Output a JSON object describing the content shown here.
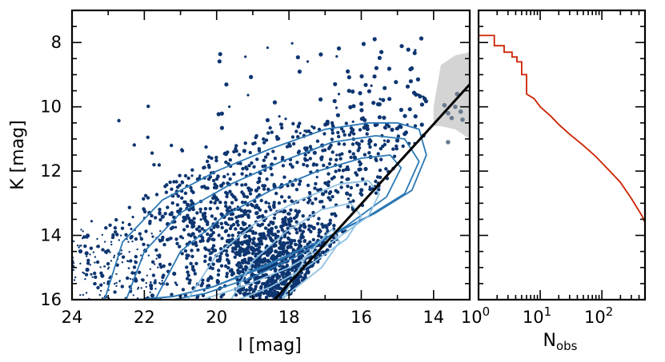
{
  "chart_data": [
    {
      "type": "scatter",
      "title": "",
      "xlabel": "I [mag]",
      "ylabel": "K [mag]",
      "xlim": [
        24.0,
        13.0
      ],
      "ylim": [
        16.0,
        7.0
      ],
      "x_inverted": true,
      "y_inverted": true,
      "xticks": [
        "24",
        "22",
        "20",
        "18",
        "16",
        "14"
      ],
      "yticks": [
        "8",
        "10",
        "12",
        "14",
        "16"
      ],
      "colors": {
        "points": "#0d3570",
        "contours_dark": "#2b78b5",
        "contours_light": "#8ec1e2",
        "line": "#000000",
        "band": "#d4d4d4"
      },
      "line": {
        "x": [
          18.4,
          13.0
        ],
        "y": [
          16.0,
          9.3
        ]
      },
      "band": {
        "x": [
          14.0,
          13.8,
          13.4,
          13.0,
          13.0,
          13.4,
          13.8,
          14.0
        ],
        "y": [
          10.0,
          8.7,
          8.4,
          8.3,
          11.0,
          10.7,
          10.6,
          10.6
        ]
      },
      "contours": [
        {
          "level": 1,
          "x": [
            23.1,
            22.6,
            21.5,
            20.0,
            18.5,
            17.0,
            15.8,
            15.0,
            14.4,
            14.2,
            14.6,
            15.6,
            17.0,
            18.6,
            20.1,
            21.2,
            22.2,
            22.9,
            23.1
          ],
          "y": [
            16.0,
            14.2,
            12.9,
            12.0,
            11.3,
            10.7,
            10.5,
            10.5,
            10.7,
            11.5,
            12.6,
            13.3,
            14.1,
            14.9,
            15.6,
            15.9,
            16.0,
            16.0,
            16.0
          ]
        },
        {
          "level": 2,
          "x": [
            22.5,
            22.0,
            21.0,
            19.6,
            18.2,
            16.8,
            15.6,
            14.8,
            14.4,
            14.8,
            15.8,
            17.2,
            18.7,
            20.1,
            21.2,
            22.1,
            22.5
          ],
          "y": [
            16.0,
            14.5,
            13.3,
            12.4,
            11.7,
            11.1,
            10.9,
            11.0,
            11.7,
            12.7,
            13.4,
            14.2,
            15.0,
            15.6,
            15.9,
            16.0,
            16.0
          ]
        },
        {
          "level": 3,
          "x": [
            21.7,
            21.0,
            19.8,
            18.5,
            17.2,
            16.0,
            15.2,
            14.9,
            15.3,
            16.4,
            17.7,
            19.0,
            20.3,
            21.2,
            21.7
          ],
          "y": [
            16.0,
            14.5,
            13.4,
            12.6,
            12.0,
            11.6,
            11.5,
            11.9,
            12.8,
            13.7,
            14.6,
            15.3,
            15.8,
            16.0,
            16.0
          ]
        },
        {
          "level": 4,
          "x": [
            20.8,
            20.0,
            18.9,
            17.7,
            16.6,
            15.8,
            15.5,
            15.8,
            16.8,
            18.0,
            19.3,
            20.4,
            20.8
          ],
          "y": [
            16.0,
            14.6,
            13.6,
            12.9,
            12.4,
            12.3,
            12.7,
            13.4,
            14.2,
            15.0,
            15.6,
            16.0,
            16.0
          ]
        },
        {
          "level": 5,
          "x": [
            19.6,
            19.0,
            18.1,
            17.1,
            16.3,
            16.0,
            16.4,
            17.4,
            18.5,
            19.4,
            19.6
          ],
          "y": [
            16.0,
            14.8,
            13.9,
            13.2,
            13.0,
            13.4,
            14.1,
            14.9,
            15.6,
            16.0,
            16.0
          ]
        },
        {
          "level": 6,
          "x": [
            18.2,
            17.5,
            16.8,
            16.6,
            17.1,
            18.0,
            18.2
          ],
          "y": [
            16.0,
            14.6,
            13.8,
            14.2,
            15.0,
            15.8,
            16.0
          ]
        }
      ],
      "points_note": ""
    },
    {
      "type": "line",
      "title": "",
      "xlabel": "N_obs",
      "ylabel": "K [mag]",
      "xscale": "log",
      "xlim": [
        1,
        500
      ],
      "ylim": [
        16.0,
        7.0
      ],
      "xtick_labels": [
        {
          "base": "10",
          "exp": "0"
        },
        {
          "base": "10",
          "exp": "1"
        },
        {
          "base": "10",
          "exp": "2"
        }
      ],
      "color": "#cc2200",
      "x": [
        1,
        1.8,
        1.8,
        2.6,
        2.6,
        3.5,
        3.5,
        4.2,
        4.2,
        5.0,
        5.0,
        6.0,
        6.0,
        8.0,
        10,
        15,
        20,
        30,
        50,
        80,
        120,
        200,
        300,
        450,
        500
      ],
      "y": [
        7.78,
        7.78,
        8.1,
        8.1,
        8.3,
        8.3,
        8.45,
        8.45,
        8.6,
        8.6,
        9.0,
        9.0,
        9.6,
        9.75,
        10.0,
        10.3,
        10.55,
        10.85,
        11.2,
        11.55,
        11.9,
        12.35,
        12.85,
        13.4,
        13.6
      ]
    }
  ]
}
